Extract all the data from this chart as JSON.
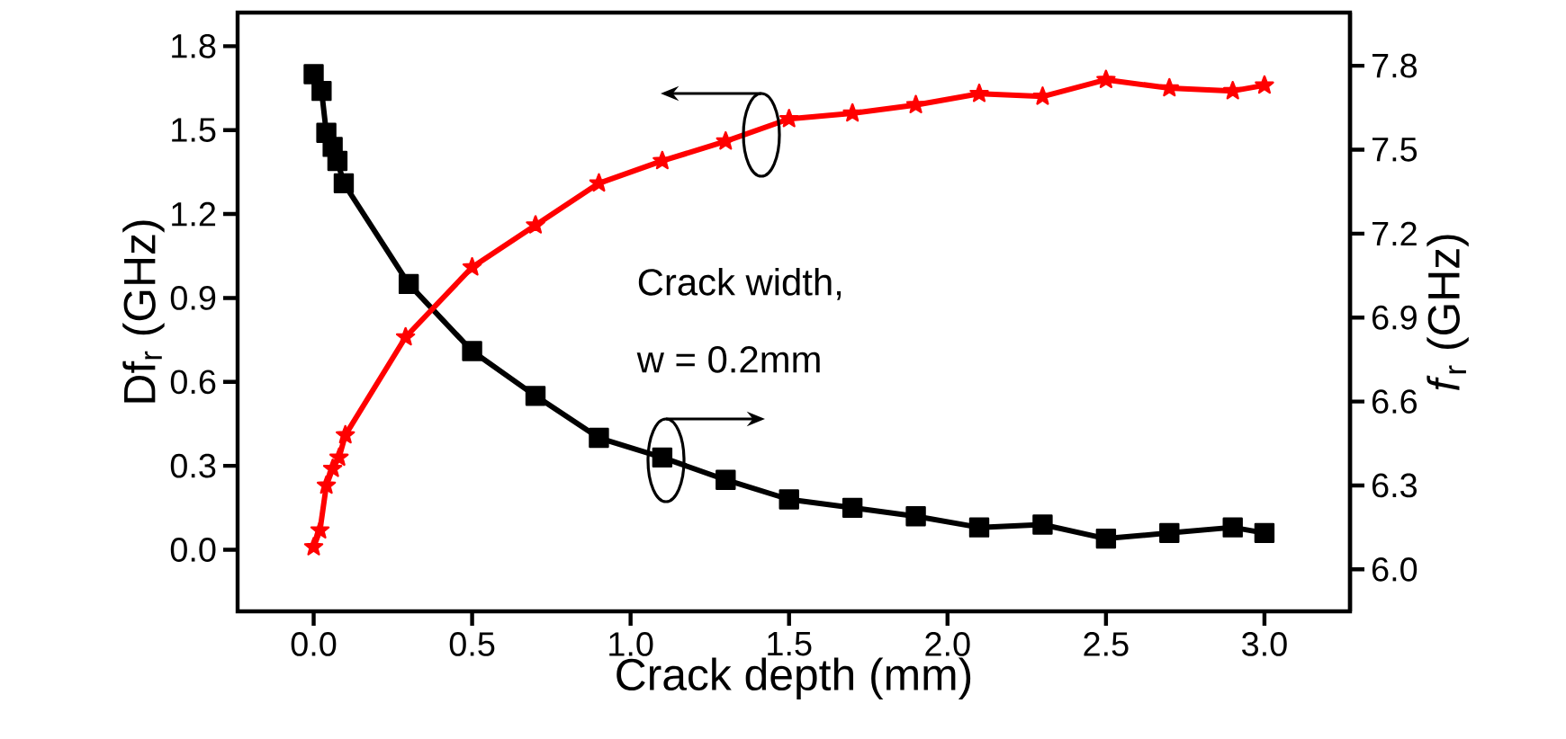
{
  "chart_data": {
    "type": "line",
    "xlabel": "Crack depth (mm)",
    "ylabel": "Df$_{r}$ (GHz)",
    "y2label": "*f*$_{r}$ (GHz)",
    "series": [
      {
        "color": "#000000",
        "marker": "square",
        "x": [
          0,
          0.025,
          0.04,
          0.06,
          0.075,
          0.095,
          0.3,
          0.5,
          0.7,
          0.9,
          1.1,
          1.3,
          1.5,
          1.7,
          1.9,
          2.1,
          2.3,
          2.5,
          2.7,
          2.9,
          3.0
        ],
        "values": [
          1.7,
          1.64,
          1.49,
          1.44,
          1.39,
          1.31,
          0.95,
          0.71,
          0.55,
          0.4,
          0.33,
          0.25,
          0.18,
          0.15,
          0.12,
          0.08,
          0.09,
          0.04,
          0.06,
          0.08,
          0.06
        ]
      },
      {
        "color": "#ff0000",
        "marker": "star",
        "axis": "y2",
        "x": [
          0,
          0.02,
          0.04,
          0.06,
          0.08,
          0.1,
          0.29,
          0.5,
          0.7,
          0.9,
          1.1,
          1.3,
          1.5,
          1.7,
          1.9,
          2.1,
          2.3,
          2.5,
          2.7,
          2.9,
          3.0
        ],
        "values": [
          6.08,
          6.14,
          6.3,
          6.36,
          6.4,
          6.48,
          6.83,
          7.08,
          7.23,
          7.38,
          7.46,
          7.53,
          7.61,
          7.63,
          7.66,
          7.7,
          7.69,
          7.75,
          7.72,
          7.71,
          7.73
        ]
      }
    ],
    "xlim": [
      -0.24,
      3.27
    ],
    "ylim": [
      -0.22,
      1.92
    ],
    "y2lim": [
      5.85,
      7.99
    ],
    "xticks": [
      {
        "value": 0,
        "label": "0.0"
      },
      0.5,
      {
        "value": 1,
        "label": "1.0"
      },
      1.5,
      {
        "value": 2,
        "label": "2.0"
      },
      2.5,
      {
        "value": 3,
        "label": "3.0"
      }
    ],
    "yticks": [
      {
        "value": 0,
        "label": "0.0"
      },
      0.3,
      0.6,
      0.9,
      1.2,
      1.5,
      1.8
    ],
    "y2ticks": [
      {
        "value": 6,
        "label": "6.0"
      },
      6.3,
      6.6,
      6.9,
      7.2,
      7.5,
      7.8
    ],
    "annotations": [
      "Crack width,",
      "w = 0.2mm"
    ]
  }
}
